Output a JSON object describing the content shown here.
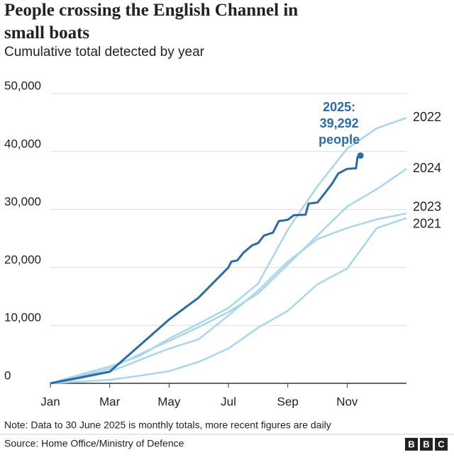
{
  "chart_data": {
    "type": "line",
    "title": "People crossing the English Channel in small boats",
    "subtitle": "Cumulative total detected by year",
    "annotation": [
      "2025:",
      "39,292",
      "people"
    ],
    "note": "Note: Data to 30 June 2025 is monthly totals, more recent figures are daily",
    "source": "Source: Home Office/Ministry of Defence",
    "logo": [
      "B",
      "B",
      "C"
    ],
    "xlim": [
      0,
      12
    ],
    "xticks": [
      {
        "value": 0,
        "label": "Jan"
      },
      {
        "value": 2,
        "label": "Mar"
      },
      {
        "value": 4,
        "label": "May"
      },
      {
        "value": 6,
        "label": "Jul"
      },
      {
        "value": 8,
        "label": "Sep"
      },
      {
        "value": 10,
        "label": "Nov"
      }
    ],
    "ylim": [
      0,
      50000
    ],
    "yticks": [
      0,
      {
        "value": 10000,
        "label": "10,000"
      },
      {
        "value": 20000,
        "label": "20,000"
      },
      {
        "value": 30000,
        "label": "30,000"
      },
      {
        "value": 40000,
        "label": "40,000"
      },
      {
        "value": 50000,
        "label": "50,000"
      }
    ],
    "grid": true,
    "series": [
      {
        "name": "2022",
        "color": "#a9d6ea",
        "x": [
          0,
          1,
          2,
          3,
          4,
          5,
          6,
          7,
          8,
          9,
          10,
          11,
          12
        ],
        "values": [
          0,
          1500,
          2900,
          4700,
          7700,
          10300,
          13000,
          17200,
          26500,
          34000,
          40500,
          44000,
          45800
        ]
      },
      {
        "name": "2024",
        "color": "#a9d6ea",
        "x": [
          0,
          1,
          2,
          3,
          4,
          5,
          6,
          7,
          8,
          9,
          10,
          11,
          12
        ],
        "values": [
          0,
          1200,
          2500,
          5000,
          7300,
          9700,
          12300,
          15500,
          20500,
          25500,
          30500,
          33500,
          37000
        ]
      },
      {
        "name": "2023",
        "color": "#a9d6ea",
        "x": [
          0,
          1,
          2,
          3,
          4,
          5,
          6,
          7,
          8,
          9,
          10,
          11,
          12
        ],
        "values": [
          0,
          800,
          2000,
          4000,
          6000,
          7600,
          11700,
          16000,
          21000,
          24900,
          26800,
          28300,
          29300
        ]
      },
      {
        "name": "2021",
        "color": "#a9d6ea",
        "x": [
          0,
          1,
          2,
          3,
          4,
          5,
          6,
          7,
          8,
          9,
          10,
          11,
          12
        ],
        "values": [
          0,
          300,
          600,
          1300,
          2100,
          3700,
          6000,
          9600,
          12500,
          17100,
          19800,
          26800,
          28500
        ]
      },
      {
        "color": "#2d6ba5",
        "x": [
          0,
          1,
          2,
          3,
          4,
          5,
          6,
          6.1,
          6.3,
          6.5,
          6.8,
          7.0,
          7.2,
          7.5,
          7.7,
          8.0,
          8.2,
          8.6,
          8.7,
          9.0,
          9.2,
          9.5,
          9.7,
          10.0,
          10.3,
          10.35,
          10.45
        ],
        "values": [
          0,
          1000,
          2000,
          6500,
          11000,
          14800,
          20000,
          21000,
          21200,
          22500,
          23800,
          24200,
          25500,
          26000,
          28000,
          28200,
          29000,
          29100,
          31000,
          31200,
          32500,
          34500,
          36200,
          37000,
          37100,
          39000,
          39292
        ]
      }
    ]
  }
}
